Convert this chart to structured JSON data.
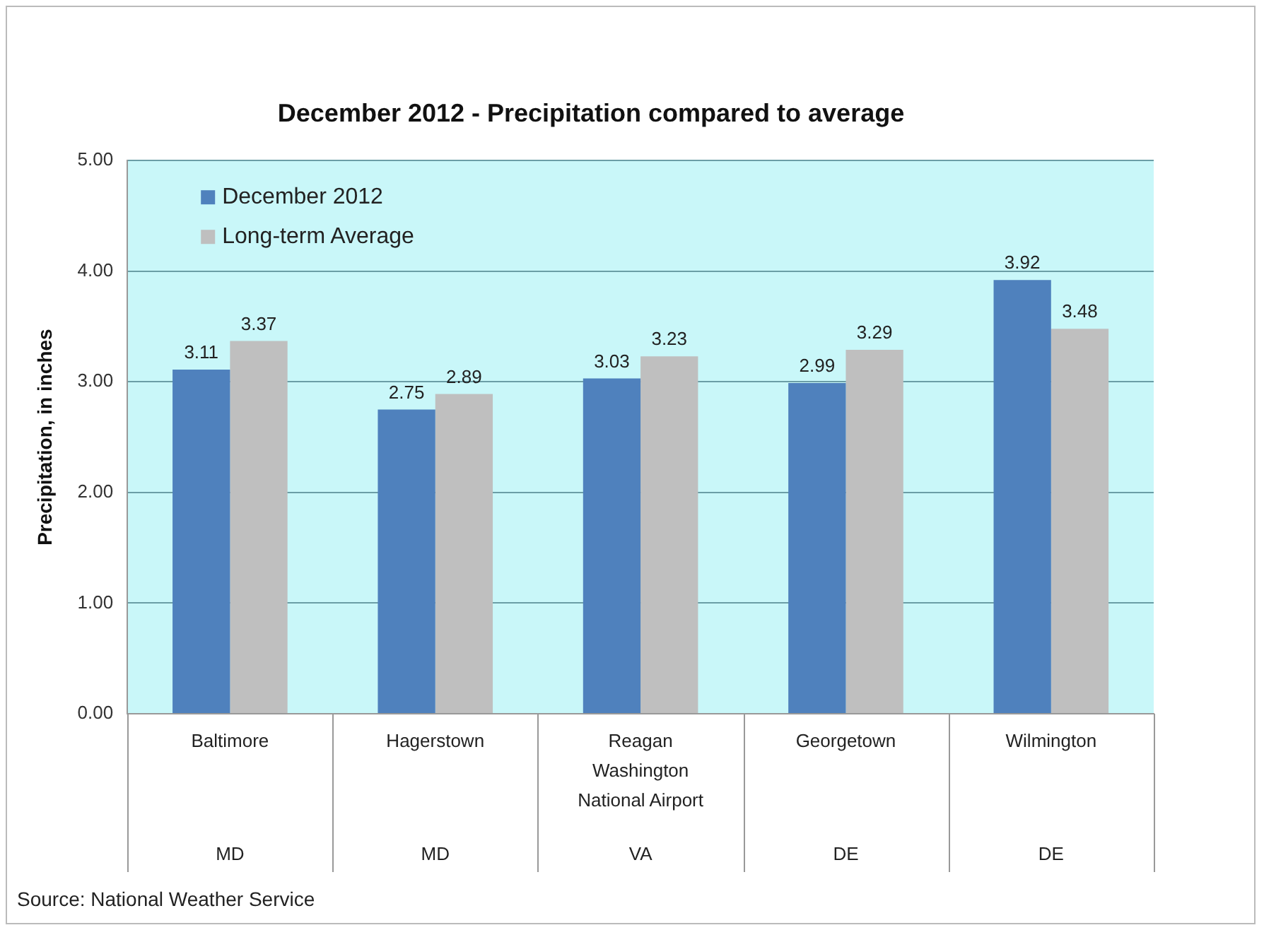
{
  "chart_data": {
    "type": "bar",
    "title": "December 2012 - Precipitation compared to average",
    "ylabel": "Precipitation, in inches",
    "categories": [
      "Baltimore\nMD",
      "Hagerstown\nMD",
      "Reagan\nWashington\nNational Airport\nVA",
      "Georgetown\nDE",
      "Wilmington\nDE"
    ],
    "series": [
      {
        "name": "December 2012",
        "color": "#4f81bd",
        "values": [
          3.11,
          2.75,
          3.03,
          2.99,
          3.92
        ]
      },
      {
        "name": "Long-term Average",
        "color": "#bfbfbf",
        "values": [
          3.37,
          2.89,
          3.23,
          3.29,
          3.48
        ]
      }
    ],
    "ylim": [
      0,
      5
    ],
    "yticks": [
      {
        "value": 0,
        "label": "0.00"
      },
      {
        "value": 1,
        "label": "1.00"
      },
      {
        "value": 2,
        "label": "2.00"
      },
      {
        "value": 3,
        "label": "3.00"
      },
      {
        "value": 4,
        "label": "4.00"
      },
      {
        "value": 5,
        "label": "5.00"
      }
    ],
    "grid": "y",
    "legend": "top left",
    "data_labels": true,
    "annotations": [
      "Source: National Weather Service"
    ]
  }
}
